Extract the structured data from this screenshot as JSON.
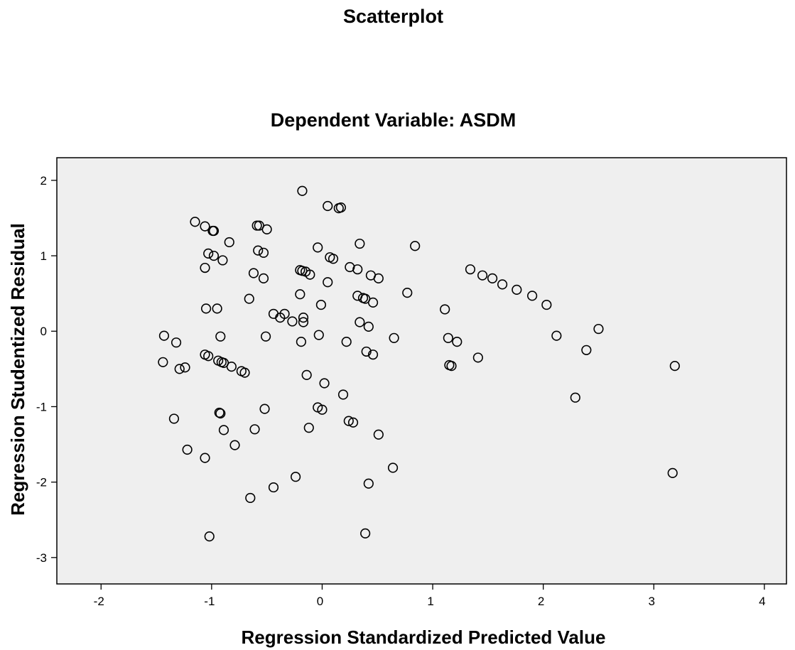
{
  "chart_data": {
    "type": "scatter",
    "title": "Scatterplot",
    "subtitle": "Dependent Variable: ASDM",
    "xlabel": "Regression Standardized Predicted Value",
    "ylabel": "Regression Studentized Residual",
    "xlim": [
      -2.4,
      4.2
    ],
    "ylim": [
      -3.35,
      2.3
    ],
    "xticks": [
      -2,
      -1,
      0,
      1,
      2,
      3,
      4
    ],
    "yticks": [
      2,
      1,
      0,
      -1,
      -2,
      -3
    ],
    "grid": false,
    "colors": {
      "plot_background": "#efefef",
      "marker": "#000000"
    },
    "points": [
      {
        "x": -1.15,
        "y": 1.45
      },
      {
        "x": -1.06,
        "y": 1.39
      },
      {
        "x": -0.98,
        "y": 1.33
      },
      {
        "x": -0.99,
        "y": 1.33
      },
      {
        "x": -0.59,
        "y": 1.4
      },
      {
        "x": -0.57,
        "y": 1.4
      },
      {
        "x": -0.5,
        "y": 1.35
      },
      {
        "x": -0.84,
        "y": 1.18
      },
      {
        "x": -1.03,
        "y": 1.03
      },
      {
        "x": -0.98,
        "y": 1.0
      },
      {
        "x": -0.9,
        "y": 0.94
      },
      {
        "x": -0.58,
        "y": 1.07
      },
      {
        "x": -0.53,
        "y": 1.04
      },
      {
        "x": -1.06,
        "y": 0.84
      },
      {
        "x": -0.62,
        "y": 0.77
      },
      {
        "x": -0.53,
        "y": 0.7
      },
      {
        "x": -1.05,
        "y": 0.3
      },
      {
        "x": -0.95,
        "y": 0.3
      },
      {
        "x": -0.66,
        "y": 0.43
      },
      {
        "x": -0.18,
        "y": 1.86
      },
      {
        "x": 0.05,
        "y": 1.66
      },
      {
        "x": 0.15,
        "y": 1.63
      },
      {
        "x": 0.17,
        "y": 1.64
      },
      {
        "x": -0.04,
        "y": 1.11
      },
      {
        "x": 0.07,
        "y": 0.98
      },
      {
        "x": 0.1,
        "y": 0.96
      },
      {
        "x": 0.34,
        "y": 1.16
      },
      {
        "x": 0.84,
        "y": 1.13
      },
      {
        "x": -0.2,
        "y": 0.81
      },
      {
        "x": -0.18,
        "y": 0.8
      },
      {
        "x": -0.15,
        "y": 0.79
      },
      {
        "x": -0.11,
        "y": 0.75
      },
      {
        "x": 0.25,
        "y": 0.85
      },
      {
        "x": 0.32,
        "y": 0.82
      },
      {
        "x": 0.44,
        "y": 0.74
      },
      {
        "x": 0.51,
        "y": 0.7
      },
      {
        "x": 0.05,
        "y": 0.65
      },
      {
        "x": -0.2,
        "y": 0.49
      },
      {
        "x": -0.01,
        "y": 0.35
      },
      {
        "x": 0.32,
        "y": 0.47
      },
      {
        "x": 0.37,
        "y": 0.44
      },
      {
        "x": 0.39,
        "y": 0.43
      },
      {
        "x": 0.46,
        "y": 0.38
      },
      {
        "x": 0.77,
        "y": 0.51
      },
      {
        "x": -0.44,
        "y": 0.23
      },
      {
        "x": -0.38,
        "y": 0.18
      },
      {
        "x": -0.34,
        "y": 0.23
      },
      {
        "x": -0.27,
        "y": 0.13
      },
      {
        "x": -0.17,
        "y": 0.18
      },
      {
        "x": -0.17,
        "y": 0.12
      },
      {
        "x": 0.34,
        "y": 0.12
      },
      {
        "x": 0.42,
        "y": 0.06
      },
      {
        "x": -1.43,
        "y": -0.06
      },
      {
        "x": -1.32,
        "y": -0.15
      },
      {
        "x": -0.92,
        "y": -0.07
      },
      {
        "x": -0.51,
        "y": -0.07
      },
      {
        "x": -0.19,
        "y": -0.14
      },
      {
        "x": -0.03,
        "y": -0.05
      },
      {
        "x": 0.22,
        "y": -0.14
      },
      {
        "x": 0.65,
        "y": -0.09
      },
      {
        "x": 0.4,
        "y": -0.27
      },
      {
        "x": 0.46,
        "y": -0.31
      },
      {
        "x": -1.44,
        "y": -0.41
      },
      {
        "x": -1.29,
        "y": -0.5
      },
      {
        "x": -1.24,
        "y": -0.48
      },
      {
        "x": -1.06,
        "y": -0.31
      },
      {
        "x": -1.03,
        "y": -0.33
      },
      {
        "x": -0.94,
        "y": -0.39
      },
      {
        "x": -0.91,
        "y": -0.41
      },
      {
        "x": -0.89,
        "y": -0.42
      },
      {
        "x": -0.82,
        "y": -0.47
      },
      {
        "x": -0.73,
        "y": -0.53
      },
      {
        "x": -0.7,
        "y": -0.55
      },
      {
        "x": -0.14,
        "y": -0.58
      },
      {
        "x": 0.02,
        "y": -0.69
      },
      {
        "x": 0.19,
        "y": -0.84
      },
      {
        "x": -0.52,
        "y": -1.03
      },
      {
        "x": -0.04,
        "y": -1.01
      },
      {
        "x": 0.0,
        "y": -1.04
      },
      {
        "x": -0.93,
        "y": -1.08
      },
      {
        "x": -0.92,
        "y": -1.09
      },
      {
        "x": -1.34,
        "y": -1.16
      },
      {
        "x": -0.89,
        "y": -1.31
      },
      {
        "x": -0.61,
        "y": -1.3
      },
      {
        "x": -0.12,
        "y": -1.28
      },
      {
        "x": 0.24,
        "y": -1.19
      },
      {
        "x": 0.28,
        "y": -1.21
      },
      {
        "x": 0.51,
        "y": -1.37
      },
      {
        "x": -1.22,
        "y": -1.57
      },
      {
        "x": -1.06,
        "y": -1.68
      },
      {
        "x": -0.79,
        "y": -1.51
      },
      {
        "x": 0.64,
        "y": -1.81
      },
      {
        "x": -0.24,
        "y": -1.93
      },
      {
        "x": -0.44,
        "y": -2.07
      },
      {
        "x": -0.65,
        "y": -2.21
      },
      {
        "x": 0.42,
        "y": -2.02
      },
      {
        "x": -1.02,
        "y": -2.72
      },
      {
        "x": 0.39,
        "y": -2.68
      },
      {
        "x": 1.11,
        "y": 0.29
      },
      {
        "x": 1.14,
        "y": -0.09
      },
      {
        "x": 1.22,
        "y": -0.14
      },
      {
        "x": 1.15,
        "y": -0.45
      },
      {
        "x": 1.17,
        "y": -0.46
      },
      {
        "x": 1.41,
        "y": -0.35
      },
      {
        "x": 1.34,
        "y": 0.82
      },
      {
        "x": 1.45,
        "y": 0.74
      },
      {
        "x": 1.54,
        "y": 0.7
      },
      {
        "x": 1.63,
        "y": 0.62
      },
      {
        "x": 1.76,
        "y": 0.55
      },
      {
        "x": 1.9,
        "y": 0.47
      },
      {
        "x": 2.03,
        "y": 0.35
      },
      {
        "x": 2.12,
        "y": -0.06
      },
      {
        "x": 2.5,
        "y": 0.03
      },
      {
        "x": 2.39,
        "y": -0.25
      },
      {
        "x": 2.29,
        "y": -0.88
      },
      {
        "x": 3.19,
        "y": -0.46
      },
      {
        "x": 3.17,
        "y": -1.88
      }
    ]
  }
}
